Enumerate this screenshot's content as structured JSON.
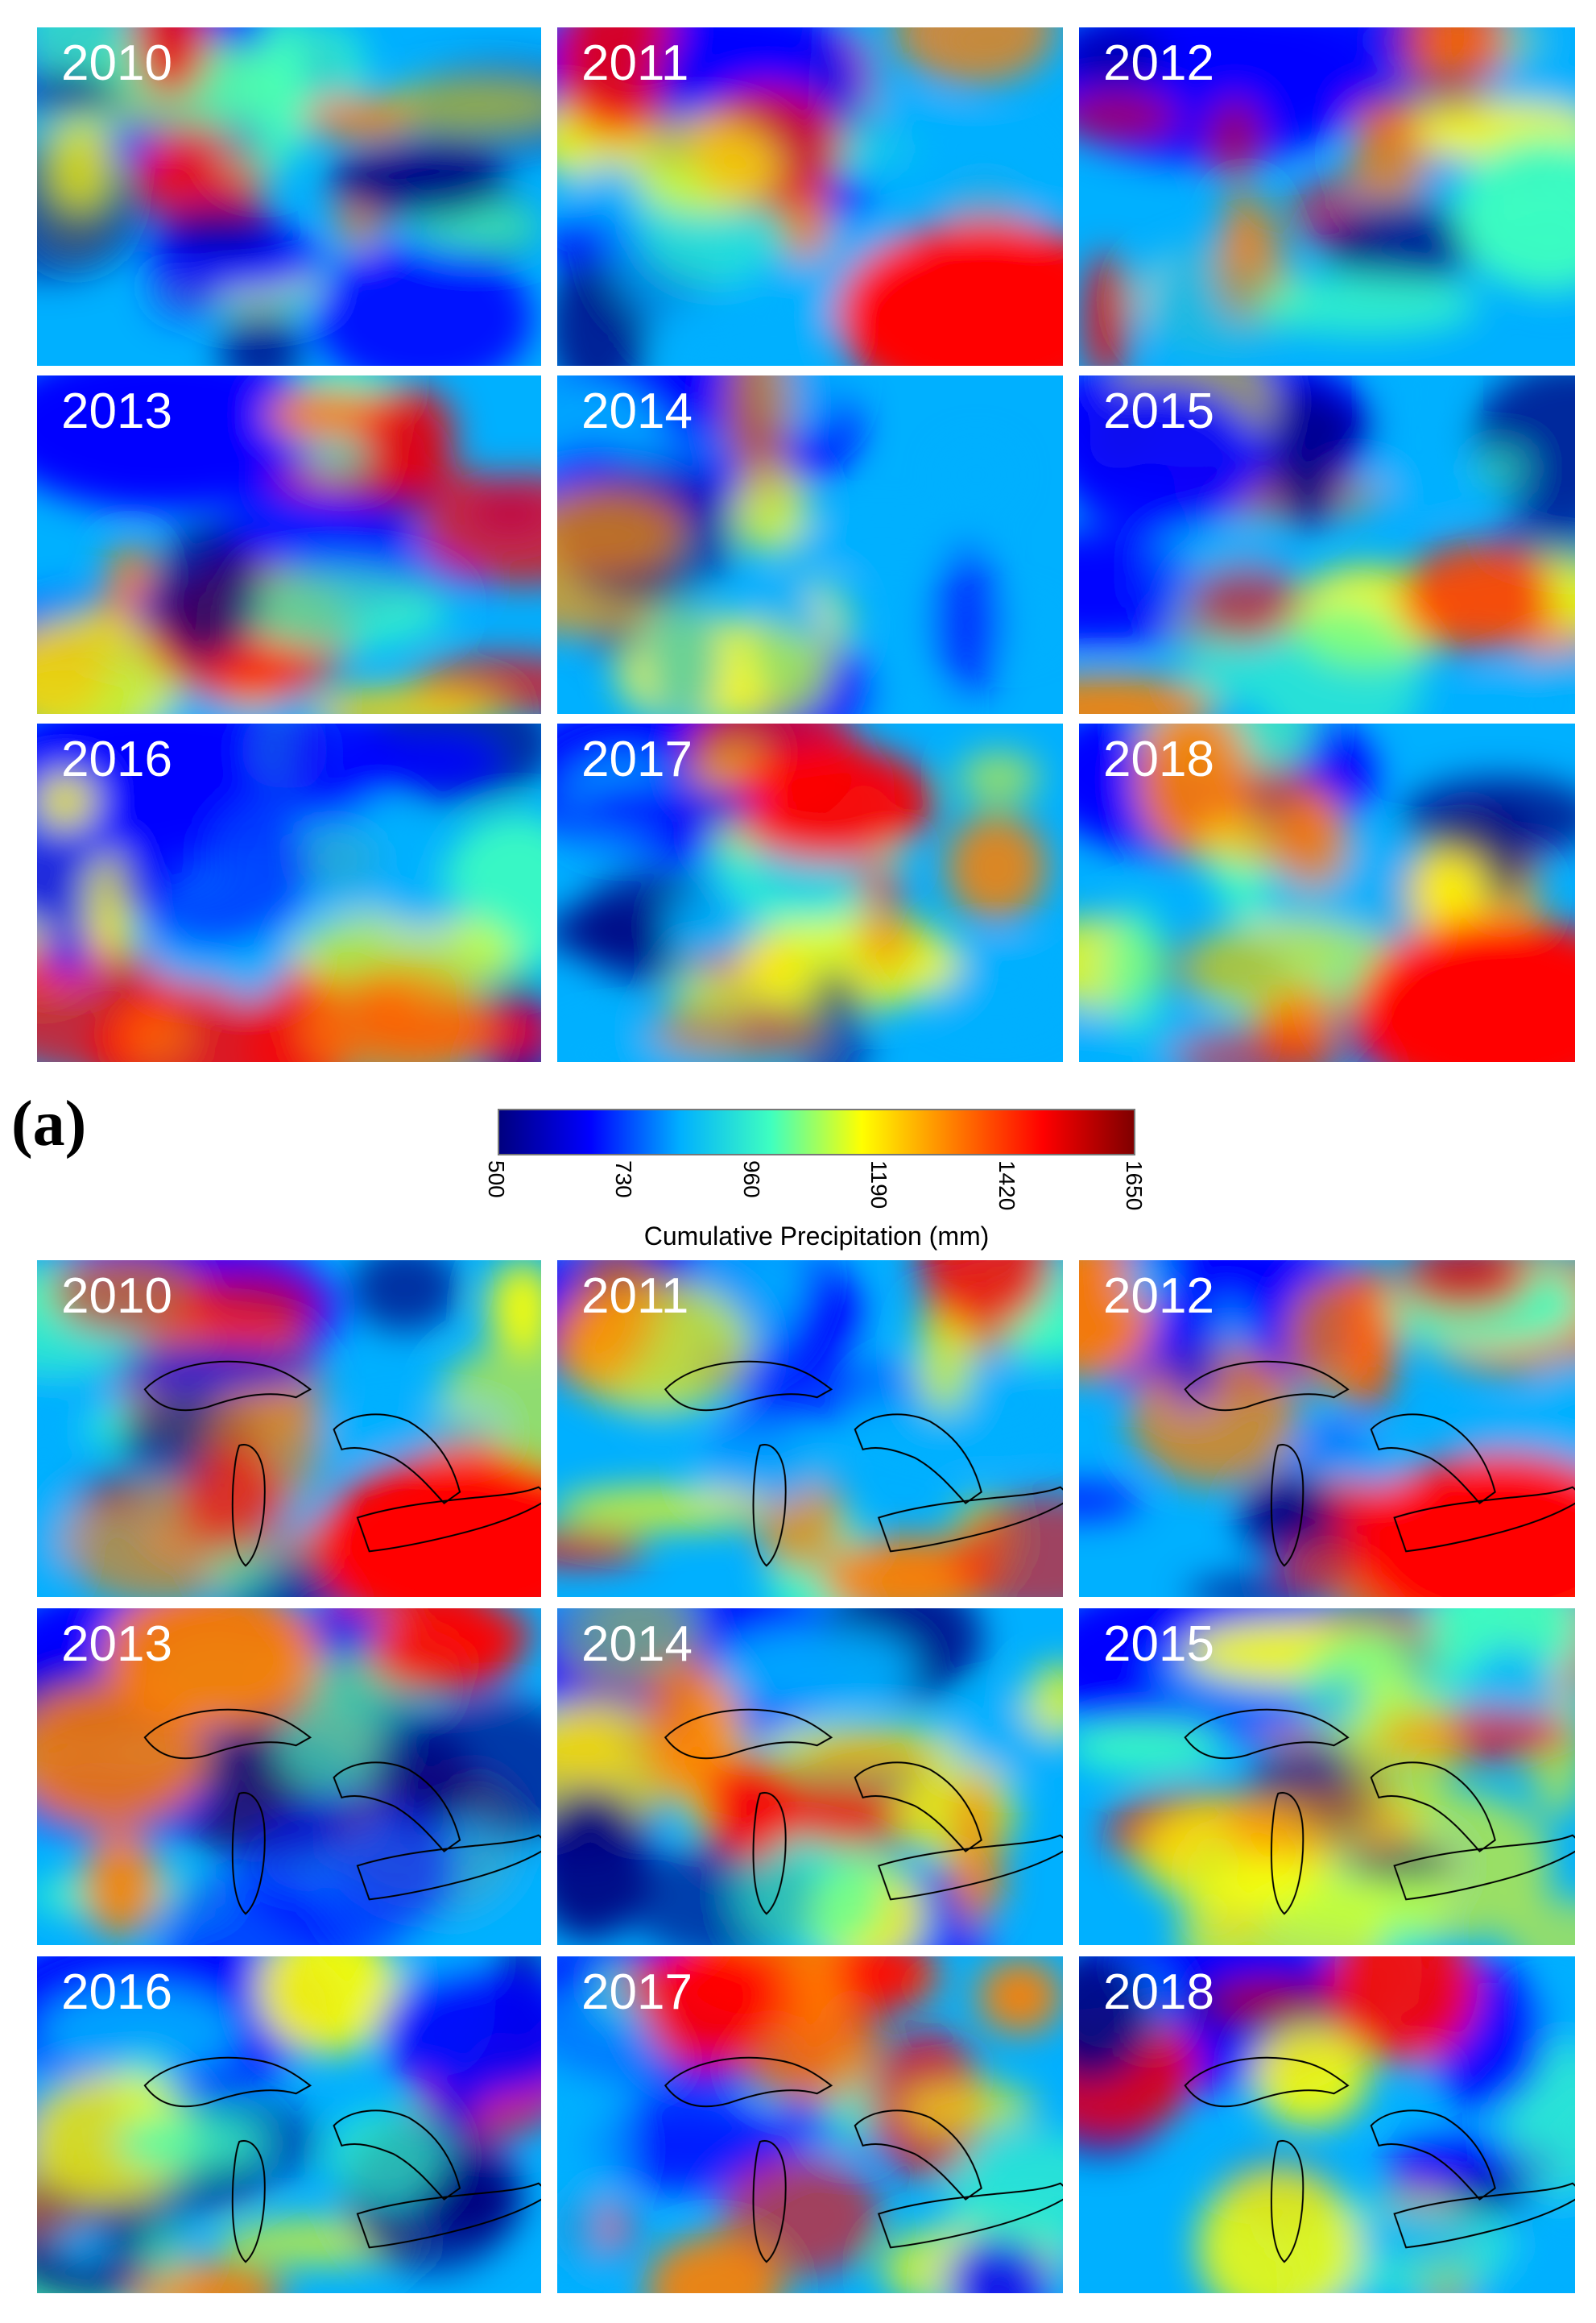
{
  "figure": {
    "panel_a_label": "(a)",
    "colorbar": {
      "label": "Cumulative Precipitation (mm)",
      "ticks": [
        "500",
        "730",
        "960",
        "1190",
        "1420",
        "1650"
      ],
      "colormap": [
        "#00007f",
        "#0000ff",
        "#00b0ff",
        "#3fffbf",
        "#ffff00",
        "#ff7f00",
        "#ff0000",
        "#7f0000"
      ]
    },
    "grid_a": {
      "years": [
        "2010",
        "2011",
        "2012",
        "2013",
        "2014",
        "2015",
        "2016",
        "2017",
        "2018"
      ]
    },
    "grid_b": {
      "years": [
        "2010",
        "2011",
        "2012",
        "2013",
        "2014",
        "2015",
        "2016",
        "2017",
        "2018"
      ]
    }
  }
}
